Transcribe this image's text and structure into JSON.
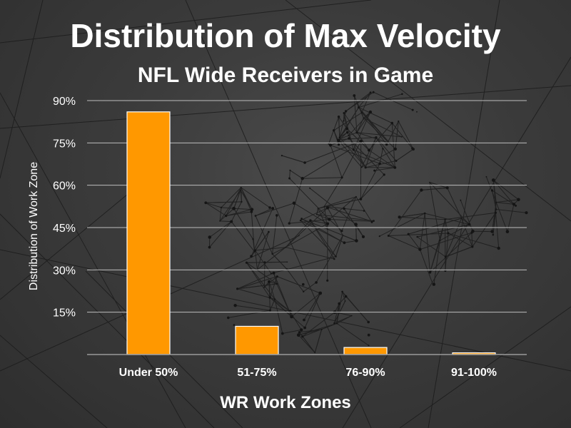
{
  "colors": {
    "bar": "#FF9800",
    "bar_edge": "#ffffff",
    "text": "#ffffff",
    "gridline": "#bdbdbd"
  },
  "background": {
    "motif": "low-poly wireframe network figure"
  },
  "chart_data": {
    "type": "bar",
    "title": "Distribution of Max Velocity",
    "subtitle": "NFL Wide Receivers in Game",
    "xlabel": "WR Work Zones",
    "ylabel": "Distribution of Work Zone",
    "categories": [
      "Under 50%",
      "51-75%",
      "76-90%",
      "91-100%"
    ],
    "values": [
      86,
      10,
      2.5,
      0.6
    ],
    "y_unit": "%",
    "ylim": [
      0,
      90
    ],
    "yticks": [
      15,
      30,
      45,
      60,
      75,
      90
    ],
    "ytick_labels": [
      "15%",
      "30%",
      "45%",
      "60%",
      "75%",
      "90%"
    ],
    "grid": true,
    "legend": "none"
  }
}
